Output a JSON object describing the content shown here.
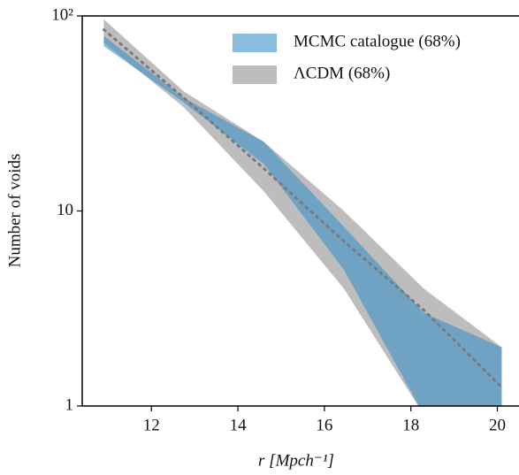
{
  "chart_data": {
    "type": "band",
    "xlabel": "r [Mpch⁻¹]",
    "ylabel": "Number of voids",
    "x": [
      10.9,
      12.75,
      14.6,
      16.45,
      18.3,
      20.1
    ],
    "xlim": [
      10.4,
      20.5
    ],
    "xticks": [
      12,
      14,
      16,
      18,
      20
    ],
    "ylim": [
      1,
      100
    ],
    "yticks": [
      {
        "value": 100,
        "label": "10²"
      },
      10,
      1
    ],
    "log_y": true,
    "legend": "upper right",
    "series": [
      {
        "name": "ΛCDM (68%)",
        "color": "#bdbdbd",
        "opacity": 1,
        "lower": [
          73,
          34,
          12.6,
          4,
          0.9,
          0.9
        ],
        "upper": [
          96,
          41,
          22.6,
          10,
          4,
          2
        ]
      },
      {
        "name": "MCMC catalogue (68%)",
        "color": "#3a8fc6",
        "opacity": 0.6,
        "lower": [
          70,
          36,
          17.4,
          5,
          0.9,
          0.9
        ],
        "upper": [
          79,
          38,
          22.6,
          8.3,
          3,
          2
        ]
      }
    ],
    "line": {
      "color": "#7a7a7a",
      "values": [
        85,
        38,
        16.5,
        7,
        3.1,
        1.25
      ]
    }
  }
}
